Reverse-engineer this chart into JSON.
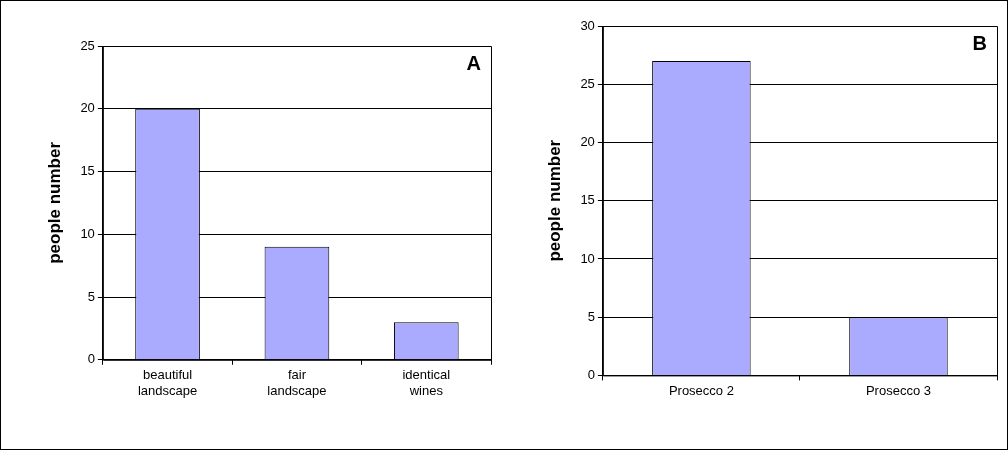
{
  "chart_data": [
    {
      "type": "bar",
      "ylabel": "people number",
      "categories": [
        "beautiful landscape",
        "fair landscape",
        "identical wines"
      ],
      "values": [
        20,
        9,
        3
      ],
      "color": "#aaaaff",
      "ylim": [
        0,
        25
      ],
      "yticks": [
        0,
        5,
        10,
        15,
        20,
        25
      ],
      "grid": "y",
      "legend": false,
      "annotations": [
        "A"
      ]
    },
    {
      "type": "bar",
      "ylabel": "people number",
      "categories": [
        "Prosecco 2",
        "Prosecco 3"
      ],
      "values": [
        27,
        5
      ],
      "color": "#aaaaff",
      "ylim": [
        0,
        30
      ],
      "yticks": [
        0,
        5,
        10,
        15,
        20,
        25,
        30
      ],
      "grid": "y",
      "legend": false,
      "annotations": [
        "B"
      ]
    }
  ]
}
